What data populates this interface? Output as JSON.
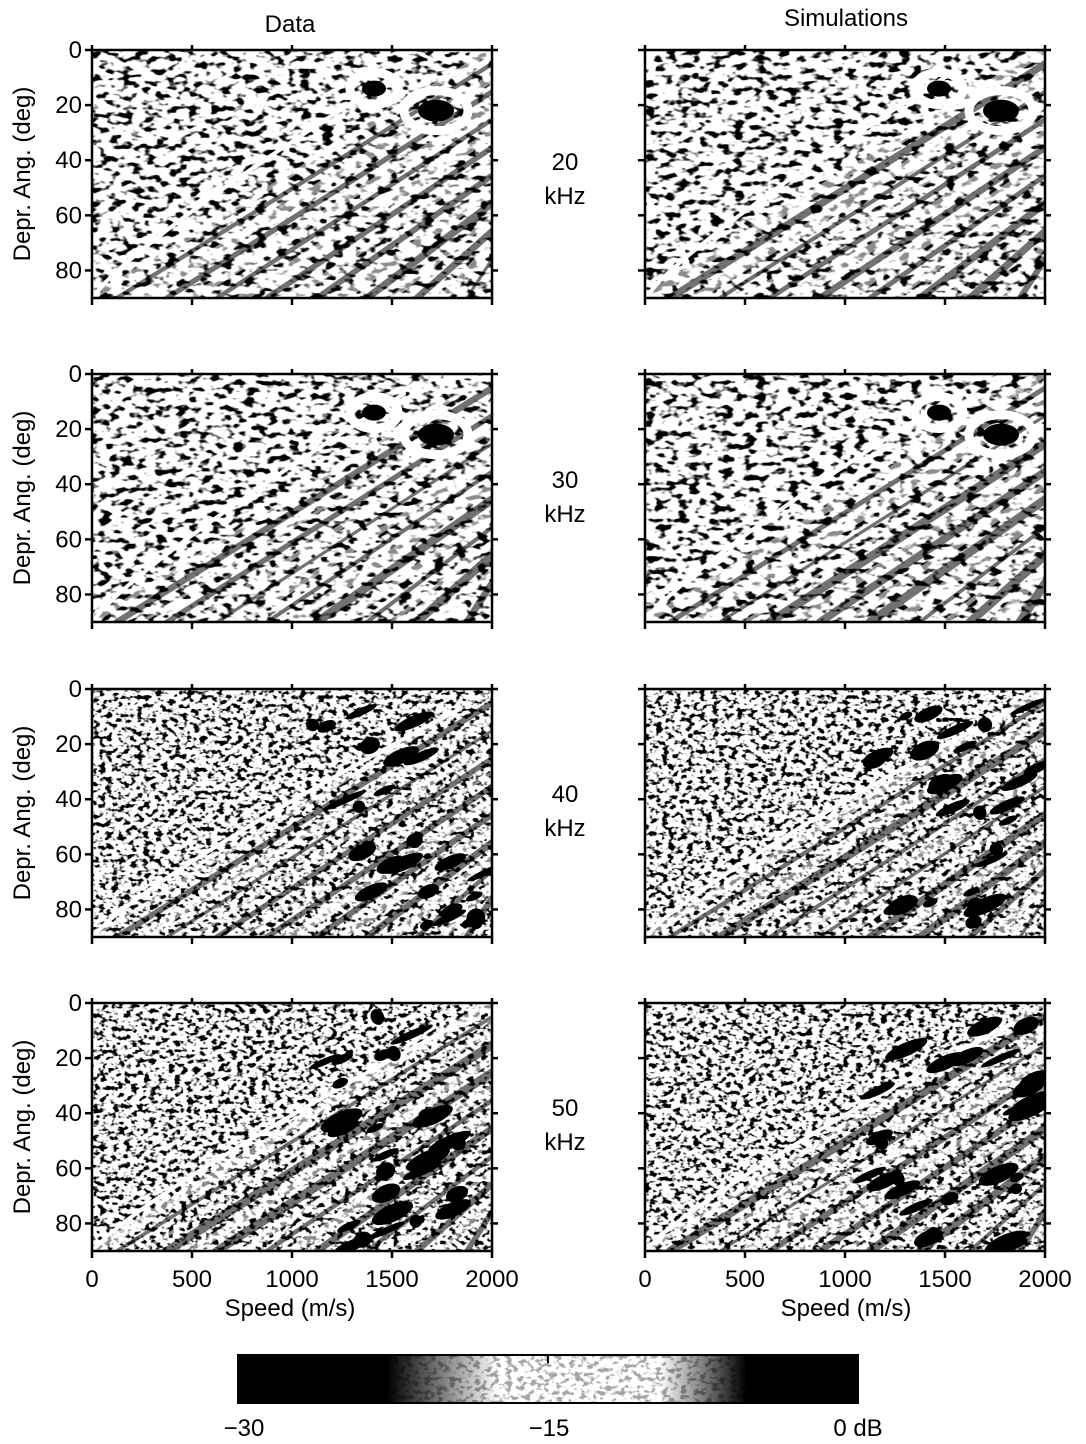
{
  "chart_data": {
    "type": "heatmap",
    "columns": [
      "Data",
      "Simulations"
    ],
    "rows": [
      {
        "frequency": "20",
        "unit": "kHz"
      },
      {
        "frequency": "30",
        "unit": "kHz"
      },
      {
        "frequency": "40",
        "unit": "kHz"
      },
      {
        "frequency": "50",
        "unit": "kHz"
      }
    ],
    "xlabel": "Speed (m/s)",
    "ylabel": "Depr. Ang. (deg)",
    "xlim": [
      0,
      2000
    ],
    "ylim": [
      0,
      90
    ],
    "y_inverted": true,
    "x_ticks": [
      "0",
      "500",
      "1000",
      "1500",
      "2000"
    ],
    "y_ticks": [
      "0",
      "20",
      "40",
      "60",
      "80"
    ],
    "colorbar": {
      "range": [
        -30,
        0
      ],
      "unit": "dB",
      "tick_labels": [
        "−30",
        "−15",
        "0 dB"
      ],
      "colors": [
        "#000000",
        "#000000",
        "#ffffff",
        "#ffffff",
        "#000000",
        "#000000"
      ]
    }
  }
}
